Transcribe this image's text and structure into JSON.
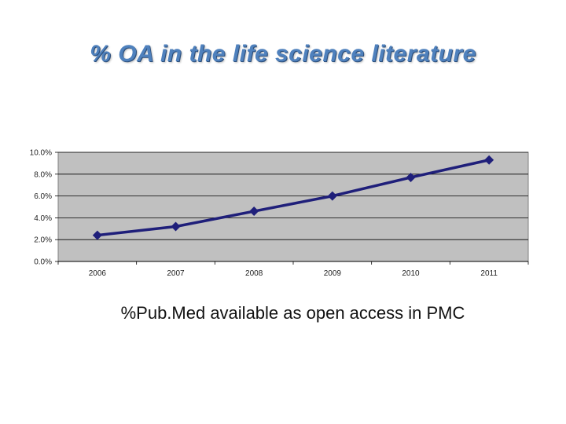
{
  "slide": {
    "title": "% OA in the life science literature",
    "caption": "%Pub.Med available as open access in PMC"
  },
  "colors": {
    "title": "#4f81bd",
    "plot_bg": "#c0c0c0",
    "line": "#1f1f7a",
    "grid": "#000000"
  },
  "chart_data": {
    "type": "line",
    "title": "",
    "xlabel": "",
    "ylabel": "",
    "categories": [
      "2006",
      "2007",
      "2008",
      "2009",
      "2010",
      "2011"
    ],
    "series": [
      {
        "values": [
          2.4,
          3.2,
          4.6,
          6.0,
          7.7,
          9.3
        ]
      }
    ],
    "ylim": [
      0,
      10
    ],
    "y_ticks": [
      "0.0%",
      "2.0%",
      "4.0%",
      "6.0%",
      "8.0%",
      "10.0%"
    ],
    "y_tick_values": [
      0,
      2,
      4,
      6,
      8,
      10
    ],
    "grid": true,
    "legend": "none",
    "marker": "diamond"
  }
}
